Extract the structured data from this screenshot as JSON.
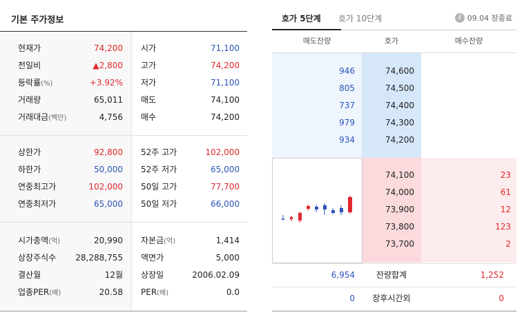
{
  "left": {
    "title": "기본 주가정보",
    "section1": [
      {
        "l1": "현재가",
        "l1u": "",
        "v1": "74,200",
        "c1": "red",
        "l2": "시가",
        "l2u": "",
        "v2": "71,100",
        "c2": "blue"
      },
      {
        "l1": "전일비",
        "l1u": "",
        "v1": "▲2,800",
        "c1": "red",
        "l2": "고가",
        "l2u": "",
        "v2": "74,200",
        "c2": "red"
      },
      {
        "l1": "등락률",
        "l1u": "(%)",
        "v1": "+3.92%",
        "c1": "red",
        "l2": "저가",
        "l2u": "",
        "v2": "71,100",
        "c2": "blue"
      },
      {
        "l1": "거래량",
        "l1u": "",
        "v1": "65,011",
        "c1": "",
        "l2": "매도",
        "l2u": "",
        "v2": "74,100",
        "c2": ""
      },
      {
        "l1": "거래대금",
        "l1u": "(백만)",
        "v1": "4,756",
        "c1": "",
        "l2": "매수",
        "l2u": "",
        "v2": "74,200",
        "c2": ""
      }
    ],
    "section2": [
      {
        "l1": "상한가",
        "l1u": "",
        "v1": "92,800",
        "c1": "red",
        "l2": "52주 고가",
        "l2u": "",
        "v2": "102,000",
        "c2": "red"
      },
      {
        "l1": "하한가",
        "l1u": "",
        "v1": "50,000",
        "c1": "blue",
        "l2": "52주 저가",
        "l2u": "",
        "v2": "65,000",
        "c2": "blue"
      },
      {
        "l1": "연중최고가",
        "l1u": "",
        "v1": "102,000",
        "c1": "red",
        "l2": "50일 고가",
        "l2u": "",
        "v2": "77,700",
        "c2": "red"
      },
      {
        "l1": "연중최저가",
        "l1u": "",
        "v1": "65,000",
        "c1": "blue",
        "l2": "50일 저가",
        "l2u": "",
        "v2": "66,000",
        "c2": "blue"
      }
    ],
    "section3": [
      {
        "l1": "시가총액",
        "l1u": "(억)",
        "v1": "20,990",
        "c1": "",
        "l2": "자본금",
        "l2u": "(억)",
        "v2": "1,414",
        "c2": ""
      },
      {
        "l1": "상장주식수",
        "l1u": "",
        "v1": "28,288,755",
        "c1": "",
        "l2": "액면가",
        "l2u": "",
        "v2": "5,000",
        "c2": ""
      },
      {
        "l1": "결산월",
        "l1u": "",
        "v1": "12월",
        "c1": "",
        "l2": "상장일",
        "l2u": "",
        "v2": "2006.02.09",
        "c2": ""
      },
      {
        "l1": "업종PER",
        "l1u": "(배)",
        "v1": "20.58",
        "c1": "",
        "l2": "PER",
        "l2u": "(배)",
        "v2": "0.0",
        "c2": ""
      }
    ]
  },
  "orderbook": {
    "tabs": [
      "호가 5단계",
      "호가 10단계"
    ],
    "status": "09.04 장종료",
    "info_icon": "i",
    "headers": [
      "매도잔량",
      "호가",
      "매수잔량"
    ],
    "asks": [
      {
        "qty": "946",
        "price": "74,600"
      },
      {
        "qty": "805",
        "price": "74,500"
      },
      {
        "qty": "737",
        "price": "74,400"
      },
      {
        "qty": "979",
        "price": "74,300"
      },
      {
        "qty": "934",
        "price": "74,200"
      }
    ],
    "bids": [
      {
        "price": "74,100",
        "qty": "23"
      },
      {
        "price": "74,000",
        "qty": "61"
      },
      {
        "price": "73,900",
        "qty": "12"
      },
      {
        "price": "73,800",
        "qty": "123"
      },
      {
        "price": "73,700",
        "qty": "2"
      }
    ],
    "total": {
      "ask": "6,954",
      "label": "잔량합계",
      "bid": "1,252"
    },
    "afterhours": {
      "ask": "0",
      "label": "장후시간외",
      "bid": "0"
    }
  },
  "colors": {
    "up": "#e0272c",
    "down": "#2a53b7"
  }
}
